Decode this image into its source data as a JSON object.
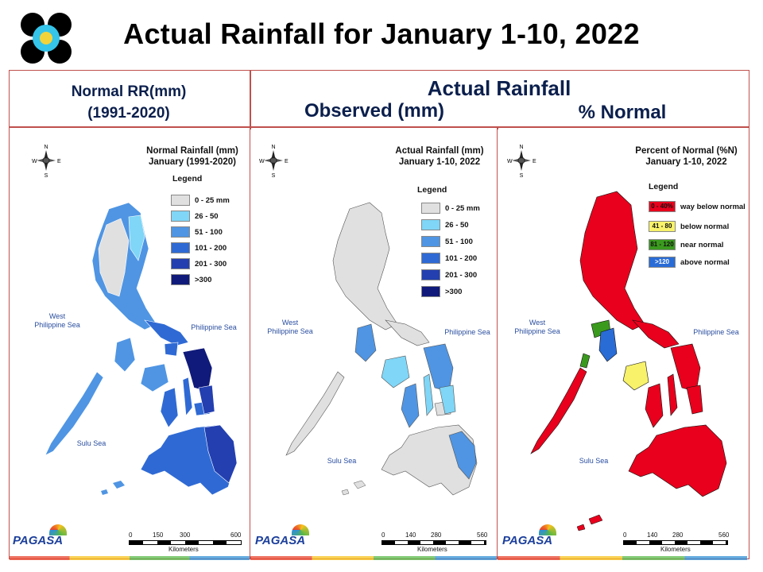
{
  "title": "Actual Rainfall for January 1-10, 2022",
  "headers": {
    "left_line1": "Normal RR(mm)",
    "left_line2": "(1991-2020)",
    "right_top": "Actual Rainfall",
    "observed": "Observed (mm)",
    "percent": "% Normal"
  },
  "compass": {
    "n": "N",
    "s": "S",
    "e": "E",
    "w": "W"
  },
  "panels": [
    {
      "title_line1": "Normal Rainfall (mm)",
      "title_line2": "January (1991-2020)",
      "legend_title": "Legend",
      "legend": [
        {
          "label": "0 - 25 mm",
          "color": "#e0e0e0"
        },
        {
          "label": "26 - 50",
          "color": "#7fd6f7"
        },
        {
          "label": "51 - 100",
          "color": "#4f95e3"
        },
        {
          "label": "101 - 200",
          "color": "#2f6ad4"
        },
        {
          "label": "201 - 300",
          "color": "#233fb0"
        },
        {
          "label": ">300",
          "color": "#101a7a"
        }
      ],
      "sea_west": "West\nPhilippine Sea",
      "sea_east": "Philippine Sea",
      "sea_south": "Sulu Sea",
      "scale_ticks": [
        "0",
        "150",
        "300",
        "600"
      ],
      "scale_unit": "Kilometers"
    },
    {
      "title_line1": "Actual Rainfall (mm)",
      "title_line2": "January 1-10, 2022",
      "legend_title": "Legend",
      "legend": [
        {
          "label": "0 - 25 mm",
          "color": "#e0e0e0"
        },
        {
          "label": "26 - 50",
          "color": "#7fd6f7"
        },
        {
          "label": "51 - 100",
          "color": "#4f95e3"
        },
        {
          "label": "101 - 200",
          "color": "#2f6ad4"
        },
        {
          "label": "201 - 300",
          "color": "#233fb0"
        },
        {
          "label": ">300",
          "color": "#101a7a"
        }
      ],
      "sea_west": "West\nPhilippine Sea",
      "sea_east": "Philippine Sea",
      "sea_south": "Sulu Sea",
      "scale_ticks": [
        "0",
        "140",
        "280",
        "560"
      ],
      "scale_unit": "Kilometers"
    },
    {
      "title_line1": "Percent of Normal (%N)",
      "title_line2": "January 1-10, 2022",
      "legend_title": "Legend",
      "legend": [
        {
          "swatch": "0 - 40%",
          "label": "way below normal",
          "color": "#e8001c"
        },
        {
          "swatch": "41 - 80",
          "label": "below normal",
          "color": "#f7f26a"
        },
        {
          "swatch": "81 - 120",
          "label": "near normal",
          "color": "#3a9a1e"
        },
        {
          "swatch": ">120",
          "label": "above normal",
          "color": "#2a6cd6"
        }
      ],
      "sea_west": "West\nPhilippine Sea",
      "sea_east": "Philippine Sea",
      "sea_south": "Sulu Sea",
      "scale_ticks": [
        "0",
        "140",
        "280",
        "560"
      ],
      "scale_unit": "Kilometers"
    }
  ],
  "brand": "PAGASA"
}
